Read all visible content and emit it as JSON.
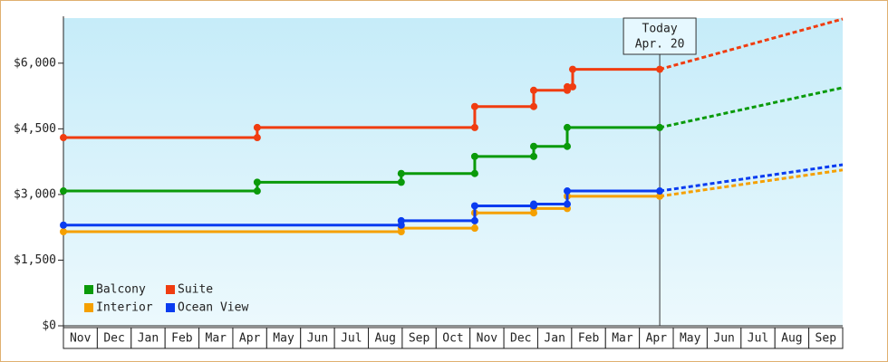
{
  "chart_data": {
    "type": "step-line",
    "xlim": [
      0,
      23
    ],
    "xticks": [
      {
        "value": 0.5,
        "label": "Nov"
      },
      {
        "value": 1.5,
        "label": "Dec"
      },
      {
        "value": 2.5,
        "label": "Jan"
      },
      {
        "value": 3.5,
        "label": "Feb"
      },
      {
        "value": 4.5,
        "label": "Mar"
      },
      {
        "value": 5.5,
        "label": "Apr"
      },
      {
        "value": 6.5,
        "label": "May"
      },
      {
        "value": 7.5,
        "label": "Jun"
      },
      {
        "value": 8.5,
        "label": "Jul"
      },
      {
        "value": 9.5,
        "label": "Aug"
      },
      {
        "value": 10.5,
        "label": "Sep"
      },
      {
        "value": 11.5,
        "label": "Oct"
      },
      {
        "value": 12.5,
        "label": "Nov"
      },
      {
        "value": 13.5,
        "label": "Dec"
      },
      {
        "value": 14.5,
        "label": "Jan"
      },
      {
        "value": 15.5,
        "label": "Feb"
      },
      {
        "value": 16.5,
        "label": "Mar"
      },
      {
        "value": 17.5,
        "label": "Apr"
      },
      {
        "value": 18.5,
        "label": "May"
      },
      {
        "value": 19.5,
        "label": "Jun"
      },
      {
        "value": 20.5,
        "label": "Jul"
      },
      {
        "value": 21.5,
        "label": "Aug"
      },
      {
        "value": 22.5,
        "label": "Sep"
      }
    ],
    "ylim": [
      0,
      7030
    ],
    "yticks": [
      {
        "value": 0,
        "label": "$0"
      },
      {
        "value": 1500,
        "label": "$1,500"
      },
      {
        "value": 3000,
        "label": "$3,000"
      },
      {
        "value": 4500,
        "label": "$4,500"
      },
      {
        "value": 6000,
        "label": "$6,000"
      }
    ],
    "annotation": {
      "x": 17.6,
      "lines": [
        "Today",
        "Apr. 20"
      ]
    },
    "series": [
      {
        "name": "Balcony",
        "color": "#0a9a0a",
        "x": [
          0,
          5.72,
          5.72,
          9.97,
          9.97,
          12.14,
          12.14,
          13.88,
          13.88,
          14.87,
          14.87,
          17.6
        ],
        "values": [
          3080,
          3080,
          3280,
          3280,
          3480,
          3480,
          3870,
          3870,
          4100,
          4100,
          4530,
          4530
        ],
        "forecast_x": [
          17.6,
          23
        ],
        "forecast_values": [
          4530,
          5440
        ]
      },
      {
        "name": "Suite",
        "color": "#f03c10",
        "x": [
          0,
          5.72,
          5.72,
          12.14,
          12.14,
          13.88,
          13.88,
          14.87,
          14.87,
          15.03,
          15.03,
          17.6
        ],
        "values": [
          4300,
          4300,
          4530,
          4530,
          5010,
          5010,
          5380,
          5380,
          5460,
          5460,
          5860,
          5860
        ],
        "forecast_x": [
          17.6,
          23
        ],
        "forecast_values": [
          5860,
          7010
        ]
      },
      {
        "name": "Interior",
        "color": "#f5a000",
        "x": [
          0,
          9.97,
          9.97,
          12.14,
          12.14,
          13.88,
          13.88,
          14.87,
          14.87,
          17.6
        ],
        "values": [
          2150,
          2150,
          2230,
          2230,
          2580,
          2580,
          2680,
          2680,
          2960,
          2960
        ],
        "forecast_x": [
          17.6,
          23
        ],
        "forecast_values": [
          2960,
          3560
        ]
      },
      {
        "name": "Ocean View",
        "color": "#0a3cf0",
        "x": [
          0,
          9.97,
          9.97,
          12.14,
          12.14,
          13.88,
          13.88,
          14.87,
          14.87,
          17.6
        ],
        "values": [
          2300,
          2300,
          2400,
          2400,
          2740,
          2740,
          2780,
          2780,
          3080,
          3080
        ],
        "forecast_x": [
          17.6,
          23
        ],
        "forecast_values": [
          3080,
          3680
        ]
      }
    ]
  }
}
